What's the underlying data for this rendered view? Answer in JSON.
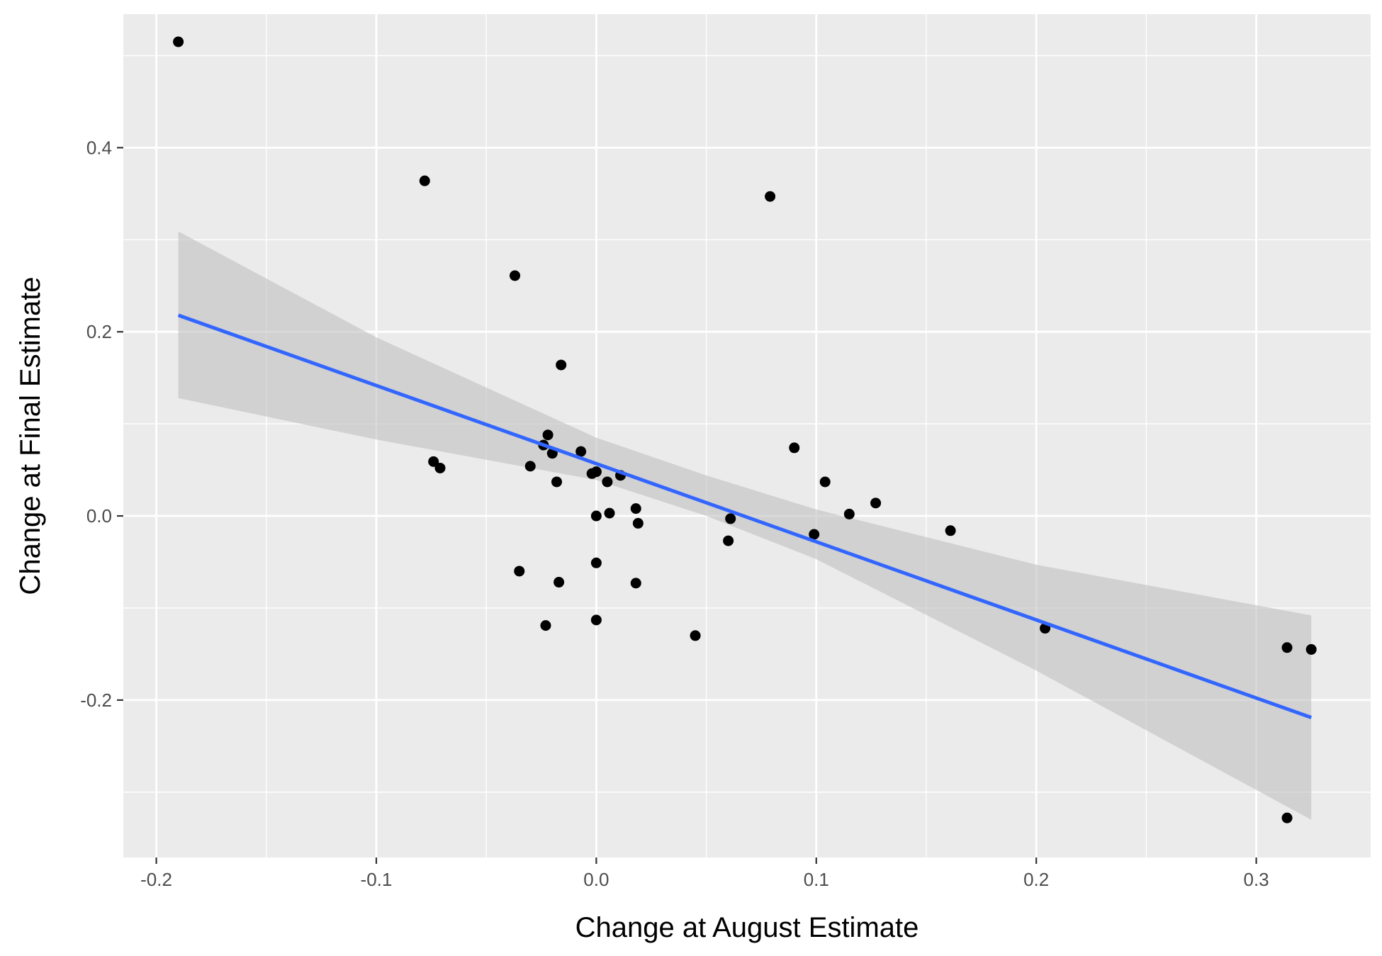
{
  "chart_data": {
    "type": "scatter",
    "title": "",
    "xlabel": "Change at August Estimate",
    "ylabel": "Change at Final Estimate",
    "xlim": [
      -0.215,
      0.352
    ],
    "ylim": [
      -0.371,
      0.545
    ],
    "x_ticks": [
      {
        "value": -0.2,
        "label": "-0.2"
      },
      {
        "value": -0.1,
        "label": "-0.1"
      },
      {
        "value": 0.0,
        "label": "0.0"
      },
      {
        "value": 0.1,
        "label": "0.1"
      },
      {
        "value": 0.2,
        "label": "0.2"
      },
      {
        "value": 0.3,
        "label": "0.3"
      }
    ],
    "y_ticks": [
      {
        "value": -0.2,
        "label": "-0.2"
      },
      {
        "value": 0.0,
        "label": "0.0"
      },
      {
        "value": 0.2,
        "label": "0.2"
      },
      {
        "value": 0.4,
        "label": "0.4"
      }
    ],
    "x_minor": [
      -0.15,
      -0.05,
      0.05,
      0.15,
      0.25
    ],
    "y_minor": [
      -0.3,
      -0.1,
      0.1,
      0.3,
      0.5
    ],
    "grid": true,
    "colors": {
      "panel": "#ebebeb",
      "grid": "#ffffff",
      "point": "#000000",
      "trend": "#3366ff",
      "band": "#bfbfbf"
    },
    "points": [
      {
        "x": -0.19,
        "y": 0.515
      },
      {
        "x": -0.078,
        "y": 0.364
      },
      {
        "x": -0.074,
        "y": 0.059
      },
      {
        "x": -0.071,
        "y": 0.052
      },
      {
        "x": -0.037,
        "y": 0.261
      },
      {
        "x": -0.035,
        "y": -0.06
      },
      {
        "x": -0.03,
        "y": 0.054
      },
      {
        "x": -0.024,
        "y": 0.077
      },
      {
        "x": -0.023,
        "y": -0.119
      },
      {
        "x": -0.022,
        "y": 0.088
      },
      {
        "x": -0.02,
        "y": 0.068
      },
      {
        "x": -0.018,
        "y": 0.037
      },
      {
        "x": -0.017,
        "y": -0.072
      },
      {
        "x": -0.016,
        "y": 0.164
      },
      {
        "x": -0.007,
        "y": 0.07
      },
      {
        "x": -0.002,
        "y": 0.046
      },
      {
        "x": 0.0,
        "y": 0.048
      },
      {
        "x": 0.0,
        "y": 0.0
      },
      {
        "x": 0.0,
        "y": -0.051
      },
      {
        "x": 0.0,
        "y": -0.113
      },
      {
        "x": 0.005,
        "y": 0.037
      },
      {
        "x": 0.006,
        "y": 0.003
      },
      {
        "x": 0.011,
        "y": 0.044
      },
      {
        "x": 0.018,
        "y": 0.008
      },
      {
        "x": 0.018,
        "y": -0.073
      },
      {
        "x": 0.019,
        "y": -0.008
      },
      {
        "x": 0.045,
        "y": -0.13
      },
      {
        "x": 0.06,
        "y": -0.027
      },
      {
        "x": 0.061,
        "y": -0.003
      },
      {
        "x": 0.079,
        "y": 0.347
      },
      {
        "x": 0.09,
        "y": 0.074
      },
      {
        "x": 0.099,
        "y": -0.02
      },
      {
        "x": 0.104,
        "y": 0.037
      },
      {
        "x": 0.115,
        "y": 0.002
      },
      {
        "x": 0.127,
        "y": 0.014
      },
      {
        "x": 0.161,
        "y": -0.016
      },
      {
        "x": 0.204,
        "y": -0.122
      },
      {
        "x": 0.314,
        "y": -0.143
      },
      {
        "x": 0.325,
        "y": -0.145
      },
      {
        "x": 0.314,
        "y": -0.328
      }
    ],
    "trend_line": {
      "x": [
        -0.19,
        0.325
      ],
      "y": [
        0.218,
        -0.219
      ]
    },
    "confidence_band": {
      "x": [
        -0.19,
        -0.1,
        0.0,
        0.05,
        0.1,
        0.2,
        0.325
      ],
      "upper": [
        0.309,
        0.194,
        0.085,
        0.044,
        0.007,
        -0.053,
        -0.108
      ],
      "lower": [
        0.128,
        0.083,
        0.039,
        0.0,
        -0.047,
        -0.168,
        -0.33
      ]
    }
  }
}
